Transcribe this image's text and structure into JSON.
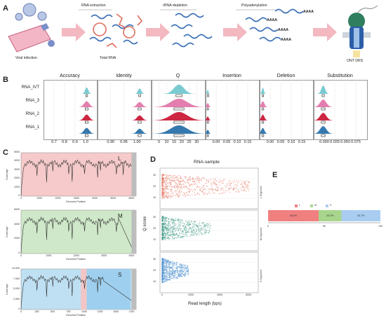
{
  "panels": {
    "A": {
      "letter": "A",
      "steps": [
        "RNA extraction",
        "rRNA depletion",
        "Polyadenylation"
      ],
      "labels": [
        "Viral infection",
        "Total RNA",
        "ONT DRS"
      ],
      "polyA": "AAAA"
    },
    "B": {
      "letter": "B",
      "metrics": [
        {
          "title": "Accuracy",
          "ticks": [
            "0.7",
            "0.8",
            "0.9",
            "1.0"
          ]
        },
        {
          "title": "Identity",
          "ticks": [
            "0.90",
            "0.95",
            "1.00"
          ]
        },
        {
          "title": "Q",
          "ticks": [
            "5",
            "10",
            "15",
            "20",
            "25",
            "30"
          ]
        },
        {
          "title": "Insertion",
          "ticks": [
            "0.00",
            "0.05",
            "0.10",
            "0.15"
          ]
        },
        {
          "title": "Deletion",
          "ticks": [
            "0.00",
            "0.05",
            "0.10",
            "0.15"
          ]
        },
        {
          "title": "Substitution",
          "ticks": [
            "0.000",
            "0.025",
            "0.050",
            "0.075"
          ]
        }
      ],
      "samples": [
        "RNA_IVT",
        "RNA_3",
        "RNA_2",
        "RNA_1"
      ],
      "colors": [
        "#6cc5cc",
        "#e070a5",
        "#c8102e",
        "#1f6aa5"
      ]
    },
    "C": {
      "letter": "C",
      "segments": [
        {
          "name": "L",
          "ylabel": "Coverage",
          "xlabel": "Genomic Position",
          "y_ticks": [
            "5000",
            "4000",
            "3000",
            "2000",
            "1000",
            "0"
          ],
          "x_ticks": [
            "0",
            "1000",
            "2000",
            "3000",
            "4000",
            "5000",
            "6000"
          ],
          "color": "#f6caca"
        },
        {
          "name": "M",
          "ylabel": "Coverage",
          "xlabel": "Genomic Position",
          "y_ticks": [
            "6000",
            "4000",
            "2000",
            "0"
          ],
          "x_ticks": [
            "0",
            "1000",
            "2000",
            "3000",
            "4000"
          ],
          "color": "#cfe8c9"
        },
        {
          "name": "S",
          "ylabel": "Coverage",
          "xlabel": "Genomic Position",
          "y_ticks": [
            "10,000",
            "7,500",
            "5,000",
            "2,500",
            "0"
          ],
          "x_ticks": [
            "0",
            "250",
            "500",
            "750",
            "1000",
            "1250",
            "1500",
            "1750"
          ],
          "color": "#bfe0f3"
        }
      ]
    },
    "D": {
      "letter": "D",
      "title": "RNA-sample",
      "ylabel": "Q score",
      "xlabel": "Read length (bps)",
      "x_ticks": [
        "0",
        "2000",
        "4000",
        "6000"
      ],
      "y_ticks": [
        "30",
        "20",
        "10"
      ],
      "facets": [
        "L Segment",
        "M segment",
        "S Segment"
      ],
      "colors": [
        "#e8735f",
        "#3f9a86",
        "#4a90d0"
      ]
    },
    "E": {
      "letter": "E",
      "legend": [
        "L",
        "M",
        "S"
      ],
      "x_ticks": [
        "0",
        "50",
        "100"
      ],
      "chart_data": {
        "type": "bar",
        "categories": [
          "L",
          "M",
          "S"
        ],
        "values": [
          45.0,
          20.3,
          34.7
        ],
        "value_labels": [
          "45.0%",
          "20.3%",
          "34.7%"
        ],
        "colors": [
          "#f08080",
          "#a7d58c",
          "#a9cdf0"
        ],
        "xlim": [
          0,
          100
        ]
      }
    }
  }
}
